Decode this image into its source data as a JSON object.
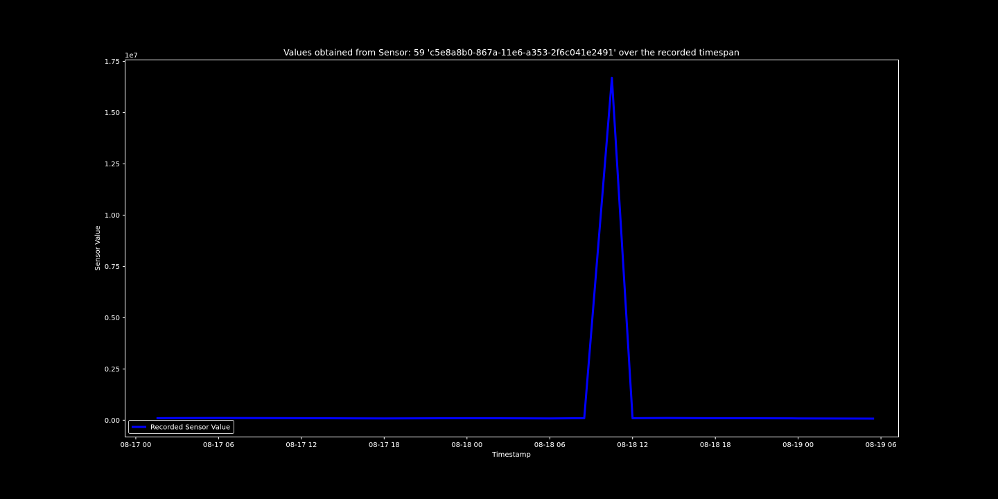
{
  "chart_data": {
    "type": "line",
    "title": "Values obtained from Sensor: 59 'c5e8a8b0-867a-11e6-a353-2f6c041e2491' over the recorded timespan",
    "xlabel": "Timestamp",
    "ylabel": "Sensor Value",
    "y_offset_label": "1e7",
    "x_tick_labels": [
      "08-17 00",
      "08-17 06",
      "08-17 12",
      "08-17 18",
      "08-18 00",
      "08-18 06",
      "08-18 12",
      "08-18 18",
      "08-19 00",
      "08-19 06"
    ],
    "x_tick_values": [
      "2016-08-17T00:00",
      "2016-08-17T06:00",
      "2016-08-17T12:00",
      "2016-08-17T18:00",
      "2016-08-18T00:00",
      "2016-08-18T06:00",
      "2016-08-18T12:00",
      "2016-08-18T18:00",
      "2016-08-19T00:00",
      "2016-08-19T06:00"
    ],
    "y_tick_labels": [
      "0.00",
      "0.25",
      "0.50",
      "0.75",
      "1.00",
      "1.25",
      "1.50",
      "1.75"
    ],
    "y_tick_values": [
      0,
      2500000,
      5000000,
      7500000,
      10000000,
      12500000,
      15000000,
      17500000
    ],
    "xlim": [
      "2016-08-16T23:15",
      "2016-08-19T07:15"
    ],
    "ylim": [
      -800000,
      17550000
    ],
    "grid": false,
    "legend_position": "lower-left",
    "colors": {
      "background": "#000000",
      "axes": "#ffffff",
      "line": "#0000ff"
    },
    "series": [
      {
        "name": "Recorded Sensor Value",
        "x": [
          "2016-08-17T01:30",
          "2016-08-17T06:00",
          "2016-08-17T12:00",
          "2016-08-17T18:00",
          "2016-08-18T00:00",
          "2016-08-18T06:00",
          "2016-08-18T08:30",
          "2016-08-18T10:30",
          "2016-08-18T12:00",
          "2016-08-18T14:30",
          "2016-08-18T18:00",
          "2016-08-19T00:00",
          "2016-08-19T05:30"
        ],
        "y": [
          100000,
          110000,
          100000,
          90000,
          100000,
          90000,
          100000,
          16700000,
          100000,
          110000,
          100000,
          90000,
          80000
        ]
      }
    ]
  }
}
